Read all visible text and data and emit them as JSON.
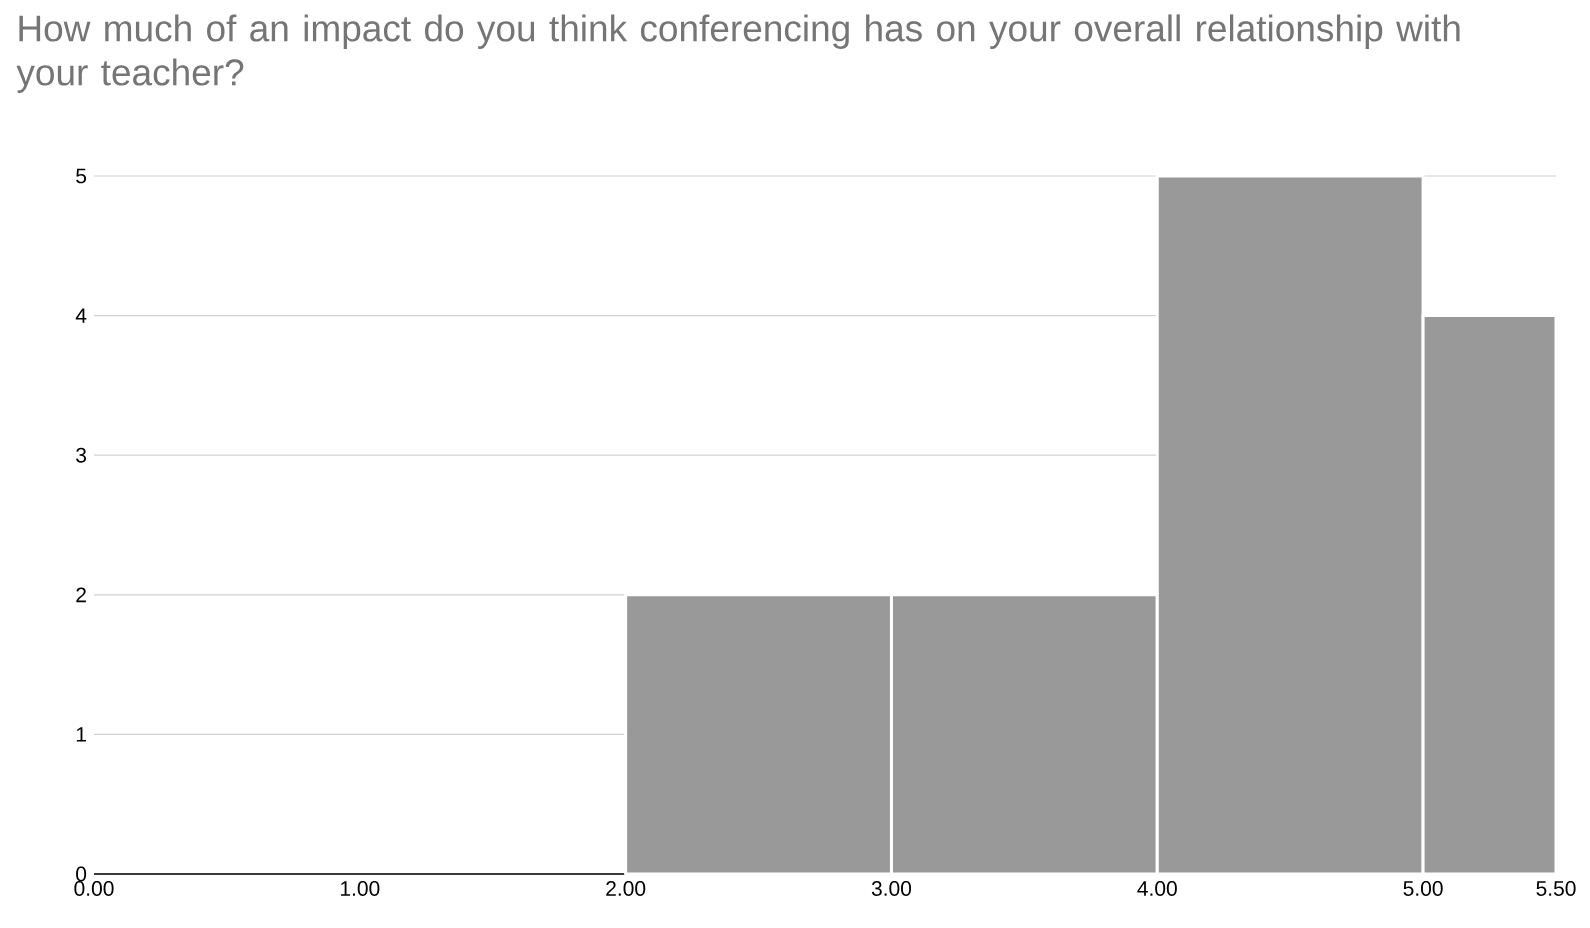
{
  "chart_data": {
    "type": "histogram",
    "title": "How much of an impact do you think conferencing has on your overall relationship with your teacher?",
    "bins": [
      2,
      3,
      4,
      5,
      5.5
    ],
    "values": [
      2,
      2,
      5,
      4
    ],
    "color": "#999999",
    "xlim": [
      0,
      5.5
    ],
    "xticks": [
      {
        "value": 0,
        "label": "0.00"
      },
      {
        "value": 1,
        "label": "1.00"
      },
      {
        "value": 2,
        "label": "2.00"
      },
      {
        "value": 3,
        "label": "3.00"
      },
      {
        "value": 4,
        "label": "4.00"
      },
      {
        "value": 5,
        "label": "5.00"
      },
      {
        "value": 5.5,
        "label": "5.50"
      }
    ],
    "ylim": [
      0,
      5
    ],
    "yticks": [
      0,
      1,
      2,
      3,
      4,
      5
    ],
    "grid": "y"
  }
}
